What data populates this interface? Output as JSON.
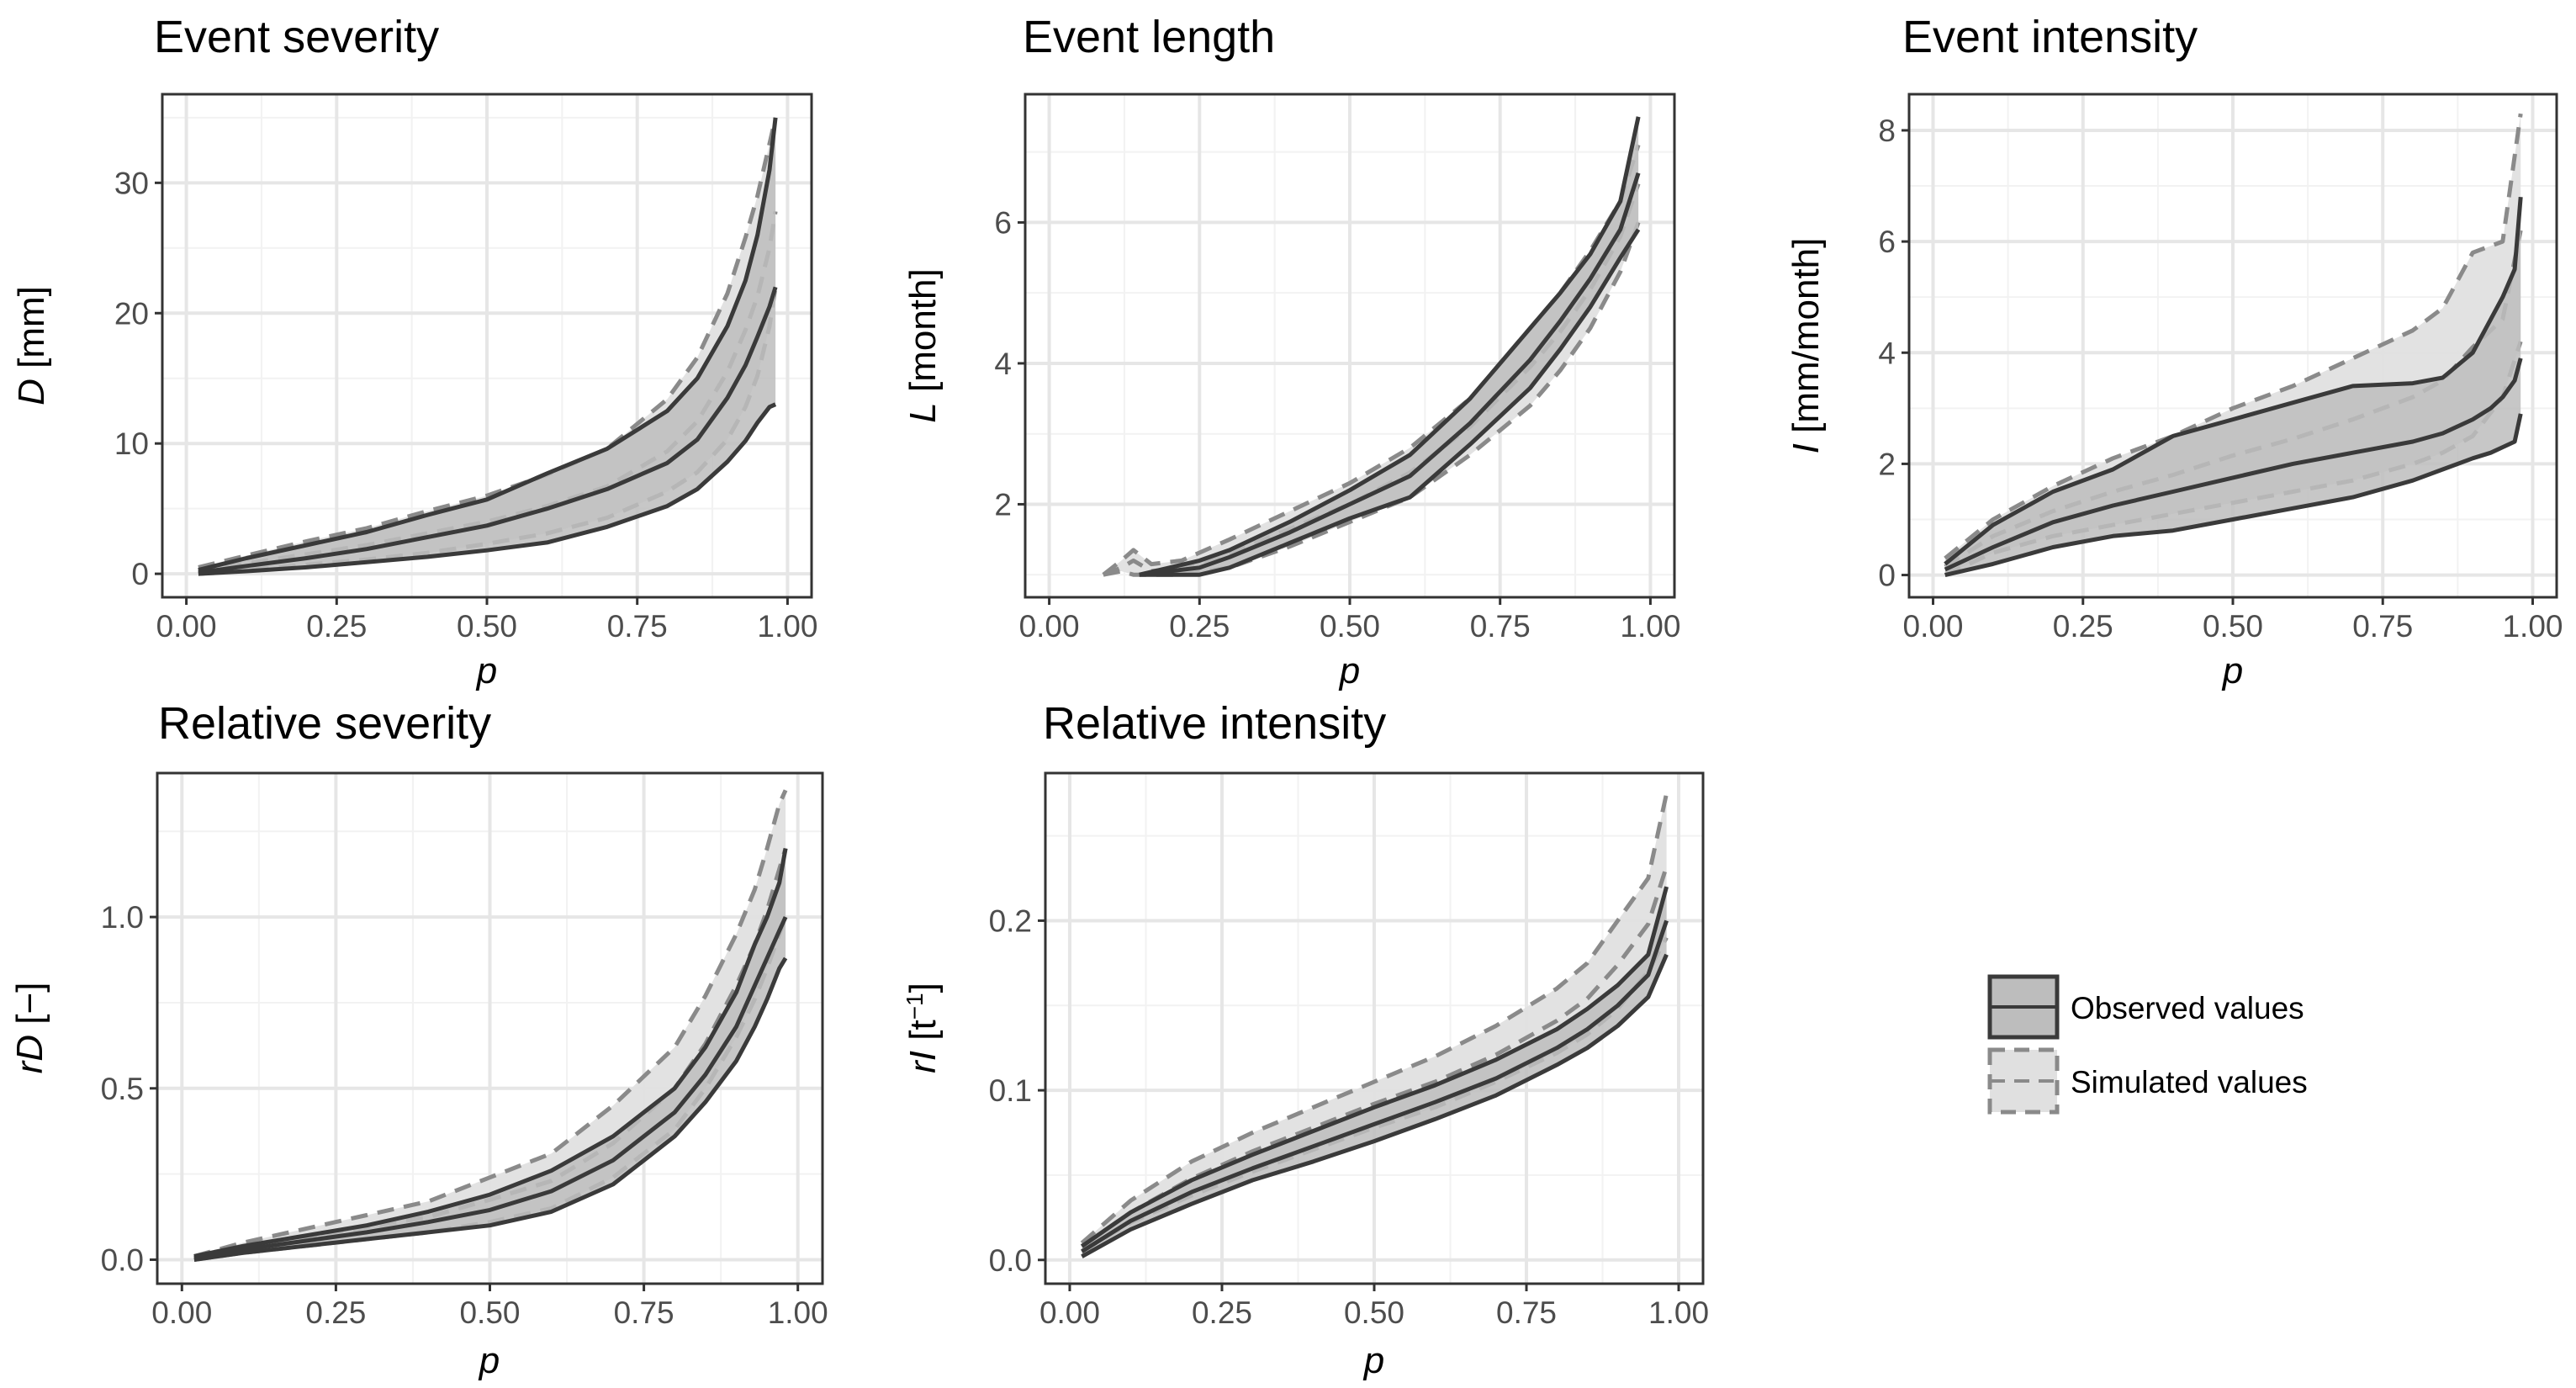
{
  "chart_data": [
    {
      "type": "area",
      "title": "Event severity",
      "xlabel": "p",
      "ylabel_italic": "D",
      "ylabel_rest": " [mm]",
      "xlim": [
        -0.04,
        1.04
      ],
      "ylim": [
        -1.8,
        36.8
      ],
      "xticks": [
        0,
        0.25,
        0.5,
        0.75,
        1
      ],
      "xtick_labels": [
        "0.00",
        "0.25",
        "0.50",
        "0.75",
        "1.00"
      ],
      "yticks": [
        0,
        10,
        20,
        30
      ],
      "ytick_labels": [
        "0",
        "10",
        "20",
        "30"
      ],
      "series": [
        {
          "name": "Simulated values",
          "role": "band",
          "x": [
            0.02,
            0.1,
            0.2,
            0.3,
            0.4,
            0.5,
            0.6,
            0.7,
            0.8,
            0.85,
            0.9,
            0.93,
            0.95,
            0.97,
            0.98
          ],
          "lower": [
            0.0,
            0.3,
            0.7,
            1.1,
            1.6,
            2.3,
            3.1,
            4.3,
            6.3,
            7.8,
            10.3,
            12.8,
            15.2,
            19.0,
            22.0
          ],
          "upper": [
            0.5,
            1.4,
            2.5,
            3.5,
            4.8,
            6.0,
            7.6,
            9.6,
            13.4,
            16.6,
            21.5,
            25.8,
            29.0,
            33.0,
            35.0
          ],
          "mid": [
            0.2,
            0.8,
            1.5,
            2.2,
            3.1,
            4.0,
            5.2,
            6.7,
            9.4,
            11.7,
            15.5,
            18.7,
            21.3,
            25.0,
            27.8
          ]
        },
        {
          "name": "Observed values",
          "role": "band",
          "x": [
            0.02,
            0.1,
            0.2,
            0.3,
            0.4,
            0.5,
            0.6,
            0.7,
            0.8,
            0.85,
            0.9,
            0.93,
            0.95,
            0.97,
            0.98
          ],
          "lower": [
            0.0,
            0.2,
            0.5,
            0.9,
            1.3,
            1.8,
            2.4,
            3.6,
            5.2,
            6.5,
            8.6,
            10.2,
            11.6,
            12.8,
            13.0
          ],
          "upper": [
            0.3,
            1.2,
            2.2,
            3.2,
            4.5,
            5.7,
            7.7,
            9.6,
            12.5,
            15.0,
            19.0,
            22.5,
            26.0,
            31.0,
            35.0
          ],
          "mid": [
            0.1,
            0.6,
            1.2,
            1.9,
            2.8,
            3.7,
            5.0,
            6.5,
            8.5,
            10.3,
            13.5,
            16.0,
            18.2,
            20.5,
            22.0
          ]
        }
      ]
    },
    {
      "type": "area",
      "title": "Event length",
      "xlabel": "p",
      "ylabel_italic": "L",
      "ylabel_rest": " [month]",
      "xlim": [
        -0.04,
        1.04
      ],
      "ylim": [
        0.68,
        7.82
      ],
      "xticks": [
        0,
        0.25,
        0.5,
        0.75,
        1
      ],
      "xtick_labels": [
        "0.00",
        "0.25",
        "0.50",
        "0.75",
        "1.00"
      ],
      "yticks": [
        2,
        4,
        6
      ],
      "ytick_labels": [
        "2",
        "4",
        "6"
      ],
      "series": [
        {
          "name": "Simulated values",
          "role": "band",
          "x": [
            0.09,
            0.12,
            0.14,
            0.17,
            0.22,
            0.3,
            0.4,
            0.5,
            0.6,
            0.7,
            0.8,
            0.85,
            0.9,
            0.95,
            0.98
          ],
          "lower": [
            1.0,
            1.05,
            1.0,
            1.0,
            1.0,
            1.1,
            1.4,
            1.75,
            2.1,
            2.7,
            3.4,
            3.9,
            4.5,
            5.3,
            6.0
          ],
          "upper": [
            1.0,
            1.2,
            1.35,
            1.15,
            1.2,
            1.5,
            1.9,
            2.3,
            2.8,
            3.5,
            4.5,
            5.0,
            5.6,
            6.3,
            7.1
          ],
          "mid": [
            1.0,
            1.1,
            1.2,
            1.05,
            1.1,
            1.3,
            1.65,
            2.0,
            2.45,
            3.1,
            3.95,
            4.45,
            5.05,
            5.8,
            6.55
          ]
        },
        {
          "name": "Observed values",
          "role": "band",
          "x": [
            0.15,
            0.2,
            0.25,
            0.3,
            0.4,
            0.5,
            0.6,
            0.7,
            0.8,
            0.85,
            0.9,
            0.95,
            0.98
          ],
          "lower": [
            1.0,
            1.0,
            1.0,
            1.1,
            1.45,
            1.8,
            2.1,
            2.85,
            3.65,
            4.2,
            4.8,
            5.5,
            5.9
          ],
          "upper": [
            1.0,
            1.1,
            1.2,
            1.35,
            1.75,
            2.2,
            2.7,
            3.5,
            4.5,
            5.0,
            5.55,
            6.3,
            7.5
          ],
          "mid": [
            1.0,
            1.05,
            1.1,
            1.25,
            1.6,
            2.0,
            2.4,
            3.15,
            4.05,
            4.6,
            5.2,
            5.9,
            6.7
          ]
        }
      ]
    },
    {
      "type": "area",
      "title": "Event intensity",
      "xlabel": "p",
      "ylabel_italic": "I",
      "ylabel_rest": " [mm/month]",
      "xlim": [
        -0.04,
        1.04
      ],
      "ylim": [
        -0.4,
        8.65
      ],
      "xticks": [
        0,
        0.25,
        0.5,
        0.75,
        1
      ],
      "xtick_labels": [
        "0.00",
        "0.25",
        "0.50",
        "0.75",
        "1.00"
      ],
      "yticks": [
        0,
        2,
        4,
        6,
        8
      ],
      "ytick_labels": [
        "0",
        "2",
        "4",
        "6",
        "8"
      ],
      "series": [
        {
          "name": "Simulated values",
          "role": "band",
          "x": [
            0.02,
            0.1,
            0.2,
            0.3,
            0.4,
            0.5,
            0.6,
            0.7,
            0.8,
            0.85,
            0.9,
            0.95,
            0.98
          ],
          "lower": [
            0.0,
            0.4,
            0.7,
            0.9,
            1.1,
            1.3,
            1.5,
            1.7,
            2.0,
            2.2,
            2.5,
            3.2,
            4.2
          ],
          "upper": [
            0.3,
            1.0,
            1.6,
            2.1,
            2.5,
            3.0,
            3.4,
            3.9,
            4.4,
            4.8,
            5.8,
            6.0,
            8.3
          ],
          "mid": [
            0.15,
            0.7,
            1.15,
            1.5,
            1.8,
            2.15,
            2.45,
            2.8,
            3.2,
            3.5,
            4.1,
            4.6,
            6.2
          ]
        },
        {
          "name": "Observed values",
          "role": "band",
          "x": [
            0.02,
            0.1,
            0.2,
            0.3,
            0.4,
            0.5,
            0.6,
            0.7,
            0.8,
            0.85,
            0.9,
            0.93,
            0.95,
            0.97,
            0.98
          ],
          "lower": [
            0.0,
            0.2,
            0.5,
            0.7,
            0.8,
            1.0,
            1.2,
            1.4,
            1.7,
            1.9,
            2.1,
            2.2,
            2.3,
            2.4,
            2.9
          ],
          "upper": [
            0.2,
            0.9,
            1.5,
            1.9,
            2.5,
            2.8,
            3.1,
            3.4,
            3.45,
            3.55,
            4.0,
            4.6,
            5.0,
            5.5,
            6.8
          ],
          "mid": [
            0.1,
            0.5,
            0.95,
            1.25,
            1.5,
            1.75,
            2.0,
            2.2,
            2.4,
            2.55,
            2.8,
            3.0,
            3.2,
            3.5,
            3.9
          ]
        }
      ]
    },
    {
      "type": "area",
      "title": "Relative severity",
      "xlabel": "p",
      "ylabel_italic": "rD",
      "ylabel_rest": " [−]",
      "xlim": [
        -0.04,
        1.04
      ],
      "ylim": [
        -0.07,
        1.42
      ],
      "xticks": [
        0,
        0.25,
        0.5,
        0.75,
        1
      ],
      "xtick_labels": [
        "0.00",
        "0.25",
        "0.50",
        "0.75",
        "1.00"
      ],
      "yticks": [
        0,
        0.5,
        1
      ],
      "ytick_labels": [
        "0.0",
        "0.5",
        "1.0"
      ],
      "series": [
        {
          "name": "Simulated values",
          "role": "band",
          "x": [
            0.02,
            0.1,
            0.2,
            0.3,
            0.4,
            0.5,
            0.6,
            0.7,
            0.8,
            0.85,
            0.9,
            0.93,
            0.95,
            0.97,
            0.98
          ],
          "lower": [
            0.0,
            0.02,
            0.04,
            0.06,
            0.08,
            0.11,
            0.15,
            0.24,
            0.38,
            0.5,
            0.65,
            0.76,
            0.85,
            0.95,
            1.0
          ],
          "upper": [
            0.01,
            0.05,
            0.09,
            0.13,
            0.17,
            0.24,
            0.31,
            0.45,
            0.62,
            0.77,
            0.95,
            1.08,
            1.2,
            1.33,
            1.37
          ],
          "mid": [
            0.005,
            0.035,
            0.065,
            0.095,
            0.125,
            0.175,
            0.23,
            0.34,
            0.5,
            0.63,
            0.8,
            0.92,
            1.02,
            1.14,
            1.2
          ]
        },
        {
          "name": "Observed values",
          "role": "band",
          "x": [
            0.02,
            0.1,
            0.2,
            0.3,
            0.4,
            0.5,
            0.6,
            0.7,
            0.8,
            0.85,
            0.9,
            0.93,
            0.95,
            0.97,
            0.98
          ],
          "lower": [
            0.0,
            0.02,
            0.04,
            0.06,
            0.08,
            0.1,
            0.14,
            0.22,
            0.36,
            0.46,
            0.58,
            0.68,
            0.76,
            0.85,
            0.88
          ],
          "upper": [
            0.01,
            0.04,
            0.07,
            0.1,
            0.14,
            0.19,
            0.26,
            0.36,
            0.5,
            0.62,
            0.78,
            0.92,
            1.0,
            1.1,
            1.2
          ],
          "mid": [
            0.005,
            0.03,
            0.055,
            0.08,
            0.11,
            0.145,
            0.2,
            0.29,
            0.43,
            0.54,
            0.68,
            0.8,
            0.88,
            0.96,
            1.0
          ]
        }
      ]
    },
    {
      "type": "area",
      "title": "Relative intensity",
      "xlabel": "p",
      "ylabel_italic": "rI",
      "ylabel_rest": " [t",
      "ylabel_sup": "−1",
      "ylabel_end": "]",
      "xlim": [
        -0.04,
        1.04
      ],
      "ylim": [
        -0.014,
        0.287
      ],
      "xticks": [
        0,
        0.25,
        0.5,
        0.75,
        1
      ],
      "xtick_labels": [
        "0.00",
        "0.25",
        "0.50",
        "0.75",
        "1.00"
      ],
      "yticks": [
        0,
        0.1,
        0.2
      ],
      "ytick_labels": [
        "0.0",
        "0.1",
        "0.2"
      ],
      "series": [
        {
          "name": "Simulated values",
          "role": "band",
          "x": [
            0.02,
            0.1,
            0.2,
            0.3,
            0.4,
            0.5,
            0.6,
            0.7,
            0.8,
            0.85,
            0.9,
            0.95,
            0.98
          ],
          "lower": [
            0.005,
            0.022,
            0.038,
            0.052,
            0.065,
            0.078,
            0.09,
            0.105,
            0.122,
            0.133,
            0.148,
            0.17,
            0.19
          ],
          "upper": [
            0.01,
            0.035,
            0.058,
            0.075,
            0.09,
            0.105,
            0.12,
            0.138,
            0.16,
            0.175,
            0.2,
            0.225,
            0.275
          ],
          "mid": [
            0.008,
            0.028,
            0.048,
            0.064,
            0.078,
            0.092,
            0.105,
            0.121,
            0.141,
            0.154,
            0.174,
            0.198,
            0.232
          ]
        },
        {
          "name": "Observed values",
          "role": "band",
          "x": [
            0.02,
            0.1,
            0.2,
            0.3,
            0.4,
            0.5,
            0.6,
            0.7,
            0.8,
            0.85,
            0.9,
            0.95,
            0.98
          ],
          "lower": [
            0.002,
            0.018,
            0.033,
            0.047,
            0.058,
            0.07,
            0.083,
            0.097,
            0.115,
            0.125,
            0.138,
            0.155,
            0.18
          ],
          "upper": [
            0.008,
            0.028,
            0.047,
            0.062,
            0.076,
            0.09,
            0.103,
            0.118,
            0.136,
            0.148,
            0.162,
            0.18,
            0.22
          ],
          "mid": [
            0.005,
            0.023,
            0.04,
            0.054,
            0.067,
            0.08,
            0.093,
            0.107,
            0.125,
            0.136,
            0.15,
            0.168,
            0.2
          ]
        }
      ]
    }
  ],
  "legend": {
    "items": [
      {
        "label": "Observed values",
        "fill": "#bdbdbd",
        "stroke": "#3a3a3a",
        "dash": "solid"
      },
      {
        "label": "Simulated values",
        "fill": "#e0e0e0",
        "stroke": "#8a8a8a",
        "dash": "dashed"
      }
    ]
  },
  "colors": {
    "obs_fill": "#bdbdbd",
    "obs_line": "#3a3a3a",
    "sim_fill": "#e0e0e0",
    "sim_line": "#8a8a8a",
    "grid_major": "#e6e6e6",
    "grid_minor": "#f2f2f2",
    "panel_border": "#333333",
    "tick_text": "#4d4d4d"
  }
}
